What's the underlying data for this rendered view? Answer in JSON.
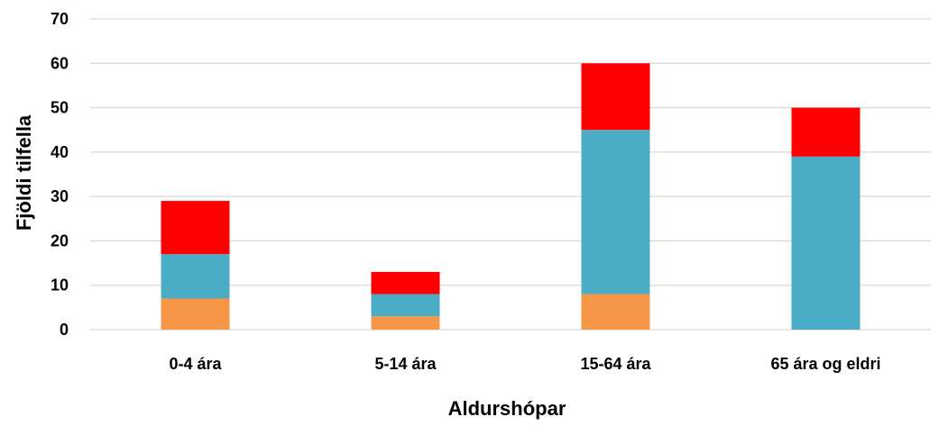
{
  "chart_data": {
    "type": "bar",
    "stacked": true,
    "categories": [
      "0-4 ára",
      "5-14 ára",
      "15-64 ára",
      "65 ára og eldri"
    ],
    "series": [
      {
        "color": "#f79646",
        "values": [
          7,
          3,
          8,
          0
        ]
      },
      {
        "color": "#4bacc6",
        "values": [
          10,
          5,
          37,
          39
        ]
      },
      {
        "color": "#ff0000",
        "values": [
          12,
          5,
          15,
          11
        ]
      }
    ],
    "xlabel": "Aldurshópar",
    "ylabel": "Fjöldi tilfella",
    "ylim": [
      0,
      70
    ],
    "yticks": [
      0,
      10,
      20,
      30,
      40,
      50,
      60,
      70
    ],
    "grid": true,
    "legend": "none"
  }
}
